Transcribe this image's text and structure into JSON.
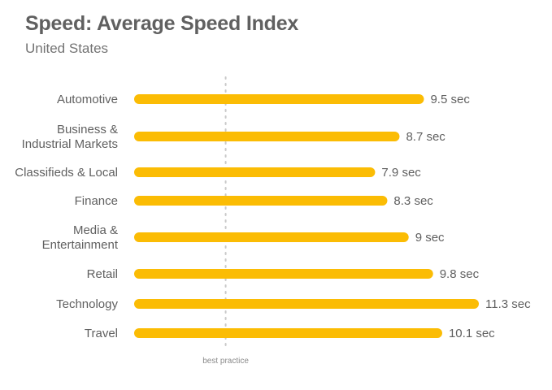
{
  "header": {
    "title": "Speed: Average Speed Index",
    "subtitle": "United States"
  },
  "chart_data": {
    "type": "bar",
    "orientation": "horizontal",
    "categories": [
      [
        "Automotive"
      ],
      [
        "Business &",
        "Industrial Markets"
      ],
      [
        "Classifieds & Local"
      ],
      [
        "Finance"
      ],
      [
        "Media &",
        "Entertainment"
      ],
      [
        "Retail"
      ],
      [
        "Technology"
      ],
      [
        "Travel"
      ]
    ],
    "values": [
      9.5,
      8.7,
      7.9,
      8.3,
      9,
      9.8,
      11.3,
      10.1
    ],
    "value_labels": [
      "9.5 sec",
      "8.7 sec",
      "7.9 sec",
      "8.3 sec",
      "9 sec",
      "9.8 sec",
      "11.3 sec",
      "10.1 sec"
    ],
    "reference_line": {
      "value": 3,
      "label": "best practice"
    },
    "xlim": [
      0,
      11.3
    ],
    "grid": false,
    "colors": {
      "bar": "#FBBC04",
      "reference": "#c8c8c8",
      "label": "#606060"
    }
  }
}
